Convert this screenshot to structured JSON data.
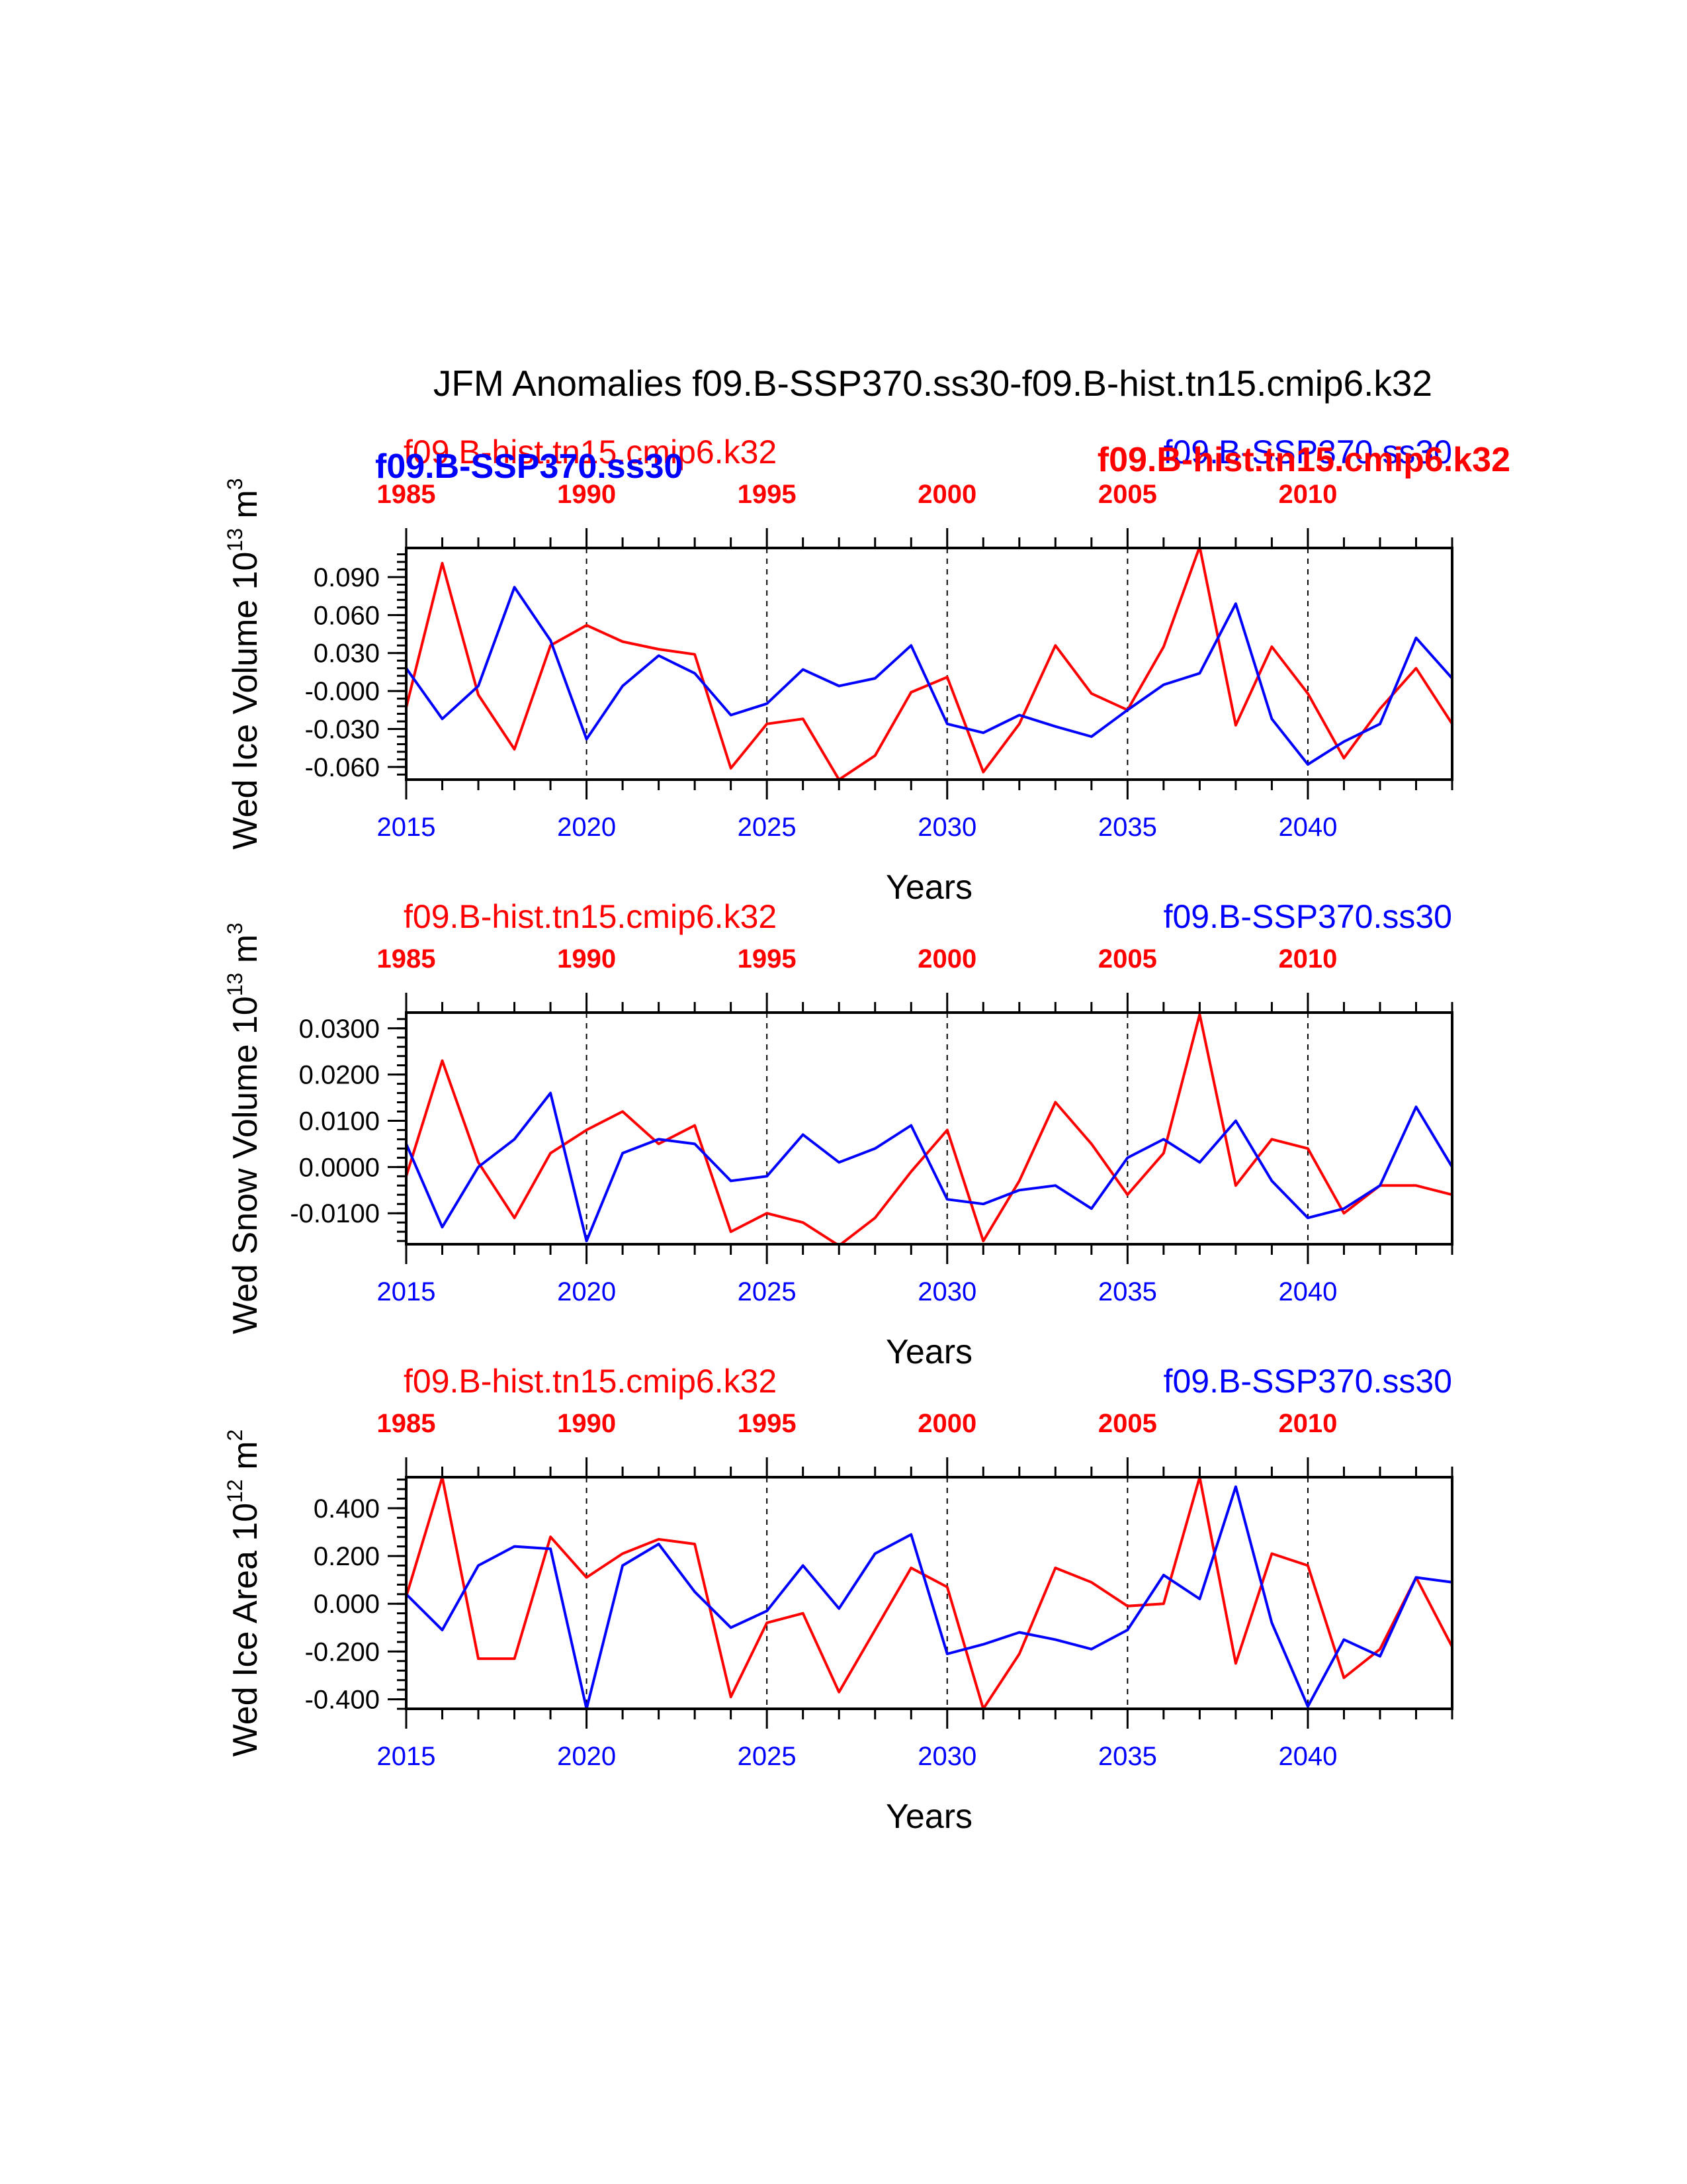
{
  "title": "JFM Anomalies f09.B-SSP370.ss30-f09.B-hist.tn15.cmip6.k32",
  "colors": {
    "ssp": "#0000ff",
    "hist": "#ff0000",
    "axis": "#000000"
  },
  "overlay_labels": {
    "ssp_bold": "f09.B-SSP370.ss30",
    "hist_bold": "f09.B-hist.tn15.cmip6.k32"
  },
  "chart_data": [
    {
      "type": "line",
      "id": "ice-volume",
      "ylabel": "Wed Ice Volume 10",
      "ylabel_exp": "13",
      "ylabel_unit": " m",
      "ylabel_unit_exp": "3",
      "xlabel": "Years",
      "series_label_top_left": "f09.B-hist.tn15.cmip6.k32",
      "series_label_top_right": "f09.B-SSP370.ss30",
      "ylim": [
        -0.07,
        0.113
      ],
      "yticks": [
        -0.06,
        -0.03,
        -0.0,
        0.03,
        0.06,
        0.09
      ],
      "ytick_labels": [
        "-0.060",
        "-0.030",
        "-0.000",
        "0.030",
        "0.060",
        "0.090"
      ],
      "series": [
        {
          "name": "f09.B-SSP370.ss30",
          "color": "#0000ff",
          "values": [
            0.018,
            -0.022,
            0.004,
            0.082,
            0.04,
            -0.038,
            0.004,
            0.028,
            0.014,
            -0.019,
            -0.01,
            0.017,
            0.004,
            0.01,
            0.036,
            -0.026,
            -0.033,
            -0.019,
            -0.028,
            -0.036,
            -0.015,
            0.005,
            0.014,
            0.069,
            -0.022,
            -0.058,
            -0.04,
            -0.026,
            0.042,
            0.01
          ]
        },
        {
          "name": "f09.B-hist.tn15.cmip6.k32",
          "color": "#ff0000",
          "values": [
            -0.013,
            0.101,
            -0.003,
            -0.046,
            0.036,
            0.052,
            0.039,
            0.033,
            0.029,
            -0.061,
            -0.026,
            -0.022,
            -0.07,
            -0.051,
            -0.001,
            0.011,
            -0.064,
            -0.026,
            0.036,
            -0.002,
            -0.015,
            0.035,
            0.114,
            -0.027,
            0.035,
            -0.002,
            -0.053,
            -0.014,
            0.018,
            -0.026
          ]
        }
      ]
    },
    {
      "type": "line",
      "id": "snow-volume",
      "ylabel": "Wed Snow Volume 10",
      "ylabel_exp": "13",
      "ylabel_unit": " m",
      "ylabel_unit_exp": "3",
      "xlabel": "Years",
      "series_label_top_left": "f09.B-hist.tn15.cmip6.k32",
      "series_label_top_right": "f09.B-SSP370.ss30",
      "ylim": [
        -0.0167,
        0.0334
      ],
      "yticks": [
        -0.01,
        0.0,
        0.01,
        0.02,
        0.03
      ],
      "ytick_labels": [
        "-0.0100",
        "0.0000",
        "0.0100",
        "0.0200",
        "0.0300"
      ],
      "series": [
        {
          "name": "f09.B-SSP370.ss30",
          "color": "#0000ff",
          "values": [
            0.005,
            -0.013,
            0.0,
            0.006,
            0.016,
            -0.016,
            0.003,
            0.006,
            0.005,
            -0.003,
            -0.002,
            0.007,
            0.001,
            0.004,
            0.009,
            -0.007,
            -0.008,
            -0.005,
            -0.004,
            -0.009,
            0.002,
            0.006,
            0.001,
            0.01,
            -0.003,
            -0.011,
            -0.009,
            -0.004,
            0.013,
            0.0
          ]
        },
        {
          "name": "f09.B-hist.tn15.cmip6.k32",
          "color": "#ff0000",
          "values": [
            -0.002,
            0.023,
            0.001,
            -0.011,
            0.003,
            0.008,
            0.012,
            0.005,
            0.009,
            -0.014,
            -0.01,
            -0.012,
            -0.017,
            -0.011,
            -0.001,
            0.008,
            -0.016,
            -0.003,
            0.014,
            0.005,
            -0.006,
            0.003,
            0.033,
            -0.004,
            0.006,
            0.004,
            -0.01,
            -0.004,
            -0.004,
            -0.006
          ]
        }
      ]
    },
    {
      "type": "line",
      "id": "ice-area",
      "ylabel": "Wed Ice Area 10",
      "ylabel_exp": "12",
      "ylabel_unit": " m",
      "ylabel_unit_exp": "2",
      "xlabel": "Years",
      "series_label_top_left": "f09.B-hist.tn15.cmip6.k32",
      "series_label_top_right": "f09.B-SSP370.ss30",
      "ylim": [
        -0.44,
        0.53
      ],
      "yticks": [
        -0.4,
        -0.2,
        0.0,
        0.2,
        0.4
      ],
      "ytick_labels": [
        "-0.400",
        "-0.200",
        "0.000",
        "0.200",
        "0.400"
      ],
      "series": [
        {
          "name": "f09.B-SSP370.ss30",
          "color": "#0000ff",
          "values": [
            0.04,
            -0.11,
            0.16,
            0.24,
            0.23,
            -0.44,
            0.16,
            0.25,
            0.05,
            -0.1,
            -0.03,
            0.16,
            -0.02,
            0.21,
            0.29,
            -0.21,
            -0.17,
            -0.12,
            -0.15,
            -0.19,
            -0.11,
            0.12,
            0.02,
            0.49,
            -0.08,
            -0.43,
            -0.15,
            -0.22,
            0.11,
            0.09
          ]
        },
        {
          "name": "f09.B-hist.tn15.cmip6.k32",
          "color": "#ff0000",
          "values": [
            0.03,
            0.53,
            -0.23,
            -0.23,
            0.28,
            0.11,
            0.21,
            0.27,
            0.25,
            -0.39,
            -0.08,
            -0.04,
            -0.37,
            -0.11,
            0.15,
            0.07,
            -0.44,
            -0.21,
            0.15,
            0.09,
            -0.01,
            0.0,
            0.53,
            -0.25,
            0.21,
            0.16,
            -0.31,
            -0.19,
            0.11,
            -0.18
          ]
        }
      ]
    }
  ],
  "bottom_axis": {
    "start_year": 2015,
    "tick_labels": [
      "2015",
      "2020",
      "2025",
      "2030",
      "2035",
      "2040"
    ]
  },
  "top_axis": {
    "start_year": 1985,
    "tick_labels": [
      "1985",
      "1990",
      "1995",
      "2000",
      "2005",
      "2010"
    ]
  }
}
